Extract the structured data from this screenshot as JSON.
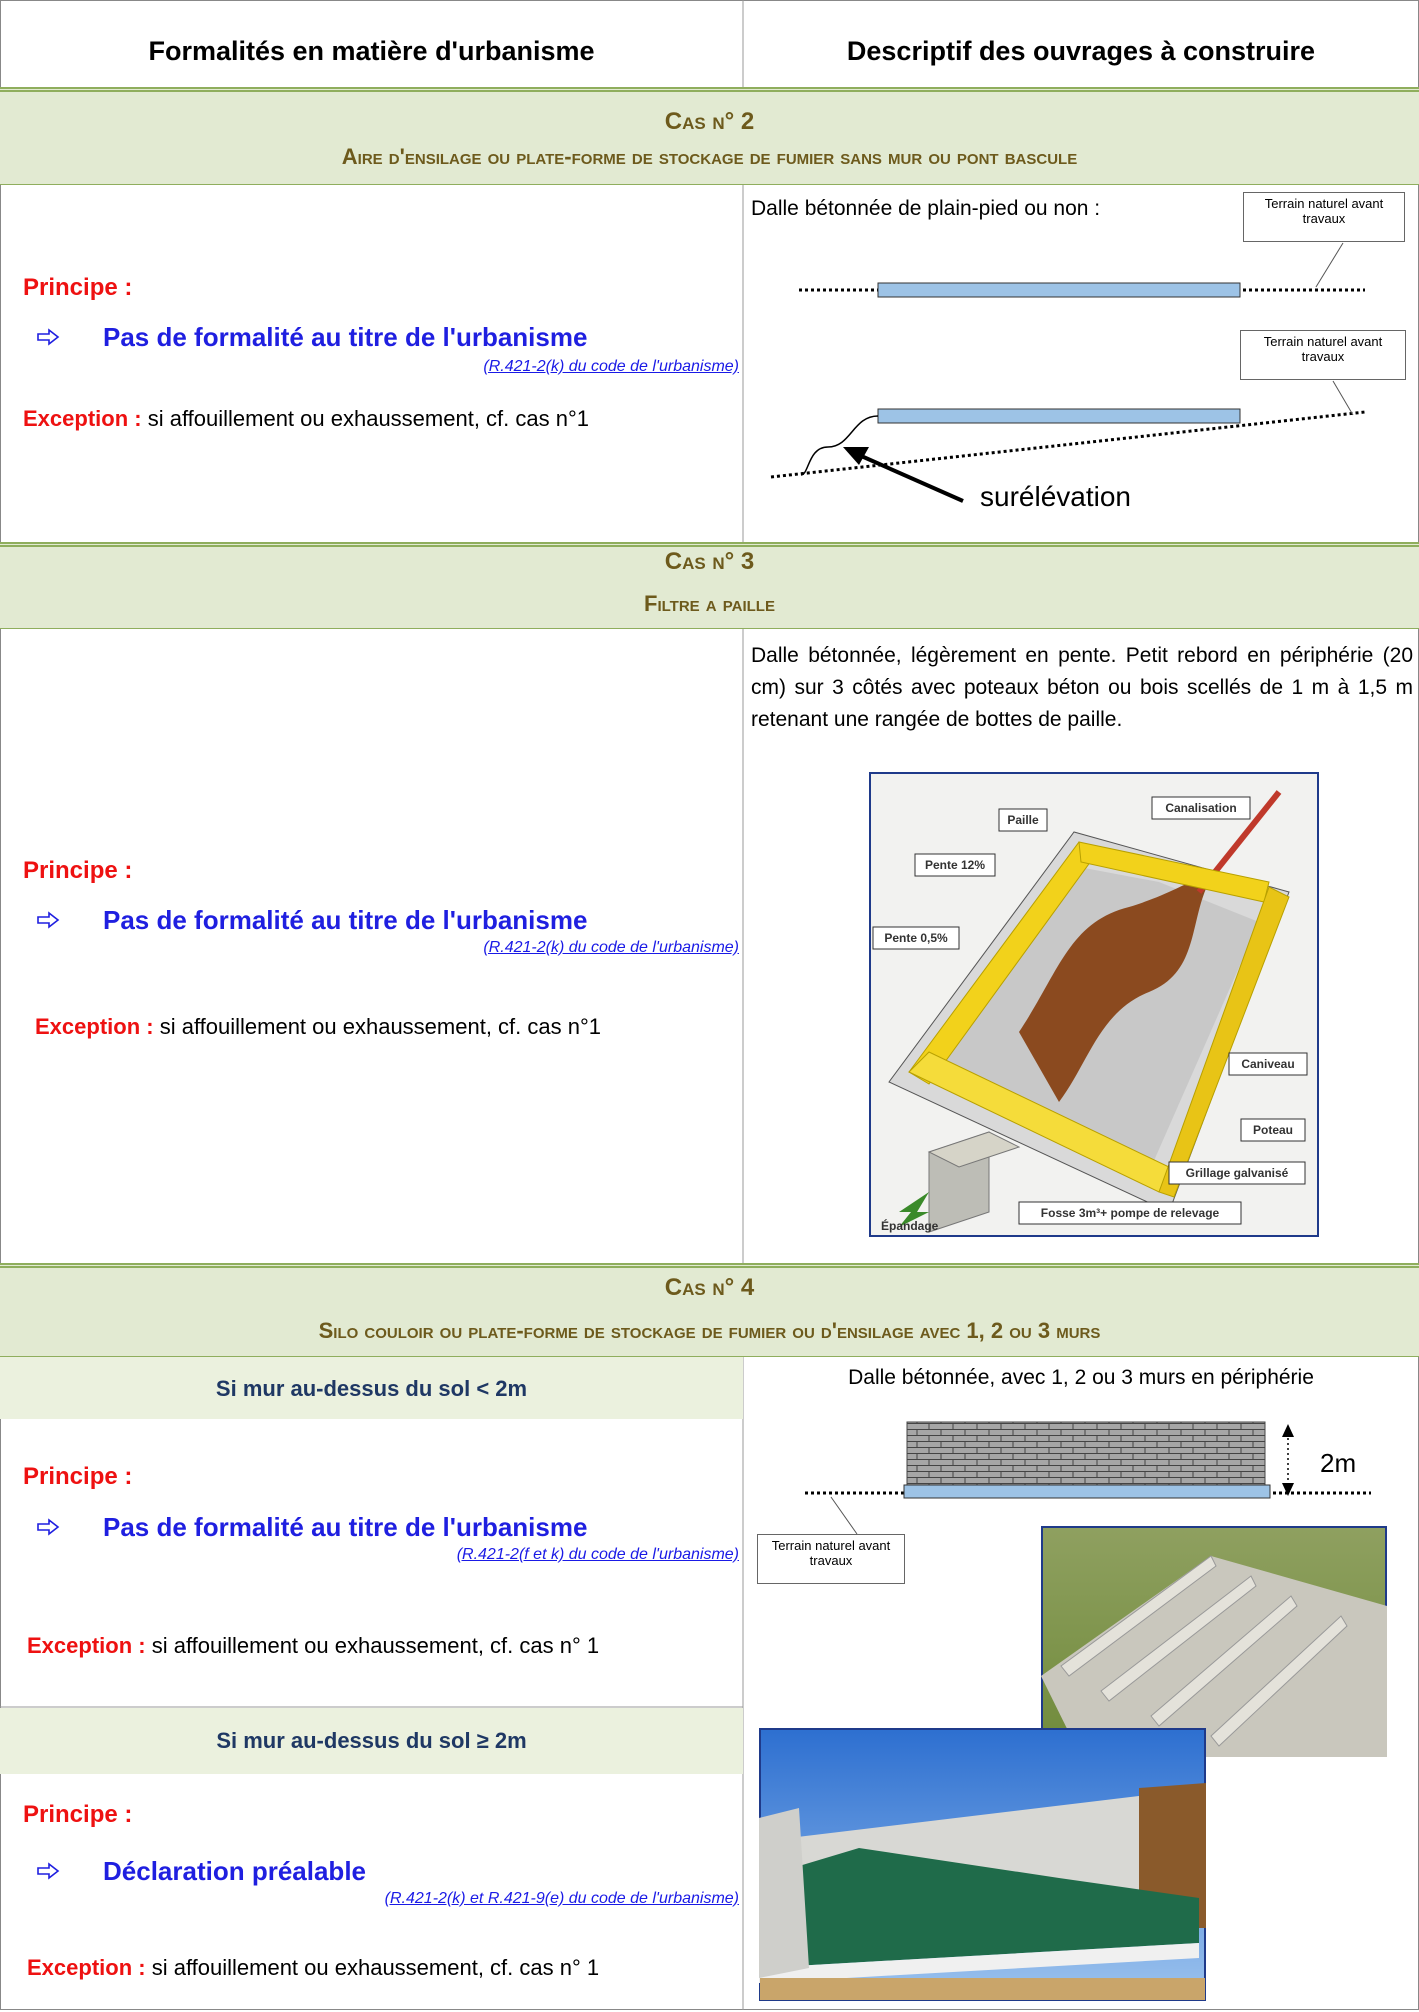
{
  "header": {
    "left": "Formalités en matière d'urbanisme",
    "right": "Descriptif des ouvrages à construire"
  },
  "cases": [
    {
      "title": "Cas n° 2",
      "subtitle": "Aire d'ensilage ou plate-forme de stockage de fumier sans mur ou pont bascule",
      "blocks": [
        {
          "principe_label": "Principe :",
          "principe": "Pas de formalité au titre de l'urbanisme",
          "reference": "(R.421-2(k) du code de l'urbanisme)",
          "exception_label": "Exception :",
          "exception": "si affouillement ou exhaussement, cf. cas n°1"
        }
      ],
      "description": "Dalle bétonnée de plain-pied ou non :",
      "diagram_labels": [
        "Terrain naturel avant travaux",
        "Terrain naturel avant travaux",
        "surélévation"
      ]
    },
    {
      "title": "Cas n° 3",
      "subtitle": "Filtre a paille",
      "blocks": [
        {
          "principe_label": "Principe :",
          "principe": "Pas de formalité au titre de l'urbanisme",
          "reference": "(R.421-2(k) du code de l'urbanisme)",
          "exception_label": "Exception :",
          "exception": "si affouillement ou exhaussement, cf. cas n°1"
        }
      ],
      "description": "Dalle bétonnée, légèrement en pente. Petit rebord en périphérie (20 cm) sur 3 côtés avec poteaux béton ou bois scellés de 1 m à 1,5 m retenant une rangée de bottes de paille.",
      "image_labels": [
        "Paille",
        "Canalisation",
        "Pente 12%",
        "Pente 0,5%",
        "Caniveau",
        "Poteau",
        "Grillage galvanisé",
        "Fosse 3m³+ pompe de relevage",
        "Épandage"
      ]
    },
    {
      "title": "Cas n° 4",
      "subtitle": "Silo couloir ou plate-forme de stockage de fumier ou d'ensilage avec 1, 2 ou 3 murs",
      "blocks": [
        {
          "heading": "Si mur au-dessus du sol < 2m",
          "principe_label": "Principe :",
          "principe": "Pas de formalité au titre de l'urbanisme",
          "reference": "(R.421-2(f et k) du code de l'urbanisme)",
          "exception_label": "Exception :",
          "exception": "si affouillement ou exhaussement, cf. cas n° 1"
        },
        {
          "heading": "Si mur au-dessus du sol ≥ 2m",
          "principe_label": "Principe :",
          "principe": "Déclaration préalable",
          "reference": "(R.421-2(k) et R.421-9(e) du code de l'urbanisme)",
          "exception_label": "Exception :",
          "exception": "si affouillement ou exhaussement, cf. cas n° 1"
        }
      ],
      "description": "Dalle bétonnée, avec 1, 2 ou 3 murs en périphérie",
      "diagram_labels": [
        "2m",
        "Terrain naturel avant travaux"
      ]
    }
  ]
}
